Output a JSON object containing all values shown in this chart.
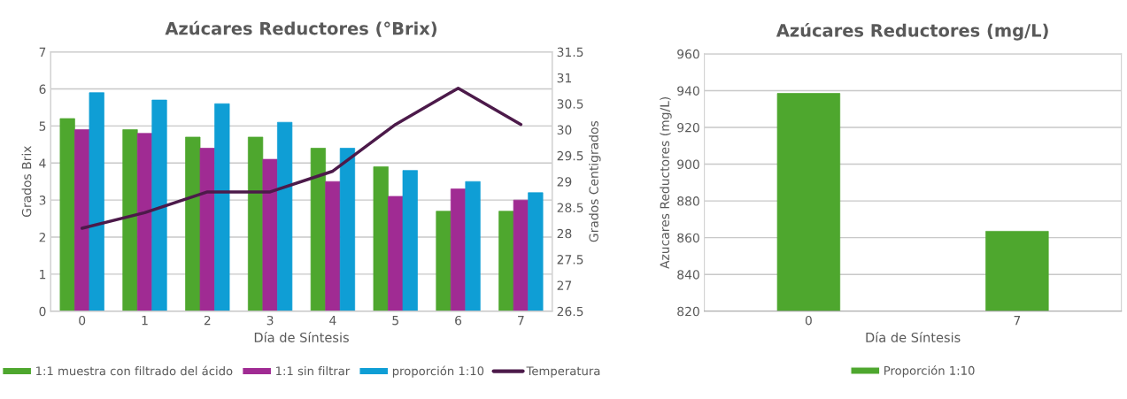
{
  "chart_data": [
    {
      "type": "bar",
      "title": "Azúcares Reductores (°Brix)",
      "xlabel": "Día de Síntesis",
      "ylabel": "Grados Brix",
      "y2label": "Grados Centigrados",
      "categories": [
        "0",
        "1",
        "2",
        "3",
        "4",
        "5",
        "6",
        "7"
      ],
      "series": [
        {
          "name": "1:1 muestra con filtrado del ácido",
          "color": "#4ea72e",
          "values": [
            5.2,
            4.9,
            4.7,
            4.7,
            4.4,
            3.9,
            2.7,
            2.7
          ]
        },
        {
          "name": "1:1 sin filtrar",
          "color": "#a02b93",
          "values": [
            4.9,
            4.8,
            4.4,
            4.1,
            3.5,
            3.1,
            3.3,
            3.0
          ]
        },
        {
          "name": "proporción 1:10",
          "color": "#0f9ed5",
          "values": [
            5.9,
            5.7,
            5.6,
            5.1,
            4.4,
            3.8,
            3.5,
            3.2
          ]
        },
        {
          "name": "Temperatura",
          "type": "line",
          "axis": "y2",
          "color": "#4c1a4a",
          "values": [
            28.1,
            28.4,
            28.8,
            28.8,
            29.2,
            30.1,
            30.8,
            30.1
          ]
        }
      ],
      "ylim": [
        0,
        7
      ],
      "yticks": [
        0,
        1,
        2,
        3,
        4,
        5,
        6,
        7
      ],
      "y2lim": [
        26.5,
        31.5
      ],
      "y2ticks": [
        26.5,
        27,
        27.5,
        28,
        28.5,
        29,
        29.5,
        30,
        30.5,
        31,
        31.5
      ],
      "grid": "y",
      "legend": "bottom"
    },
    {
      "type": "bar",
      "title": "Azúcares Reductores (mg/L)",
      "xlabel": "Día de Síntesis",
      "ylabel": "Azucares Reductores (mg/L)",
      "categories": [
        "0",
        "7"
      ],
      "series": [
        {
          "name": "Proporción 1:10",
          "color": "#4ea72e",
          "values": [
            938.5,
            863.5
          ]
        }
      ],
      "ylim": [
        820,
        960
      ],
      "yticks": [
        820,
        840,
        860,
        880,
        900,
        920,
        940,
        960
      ],
      "grid": "y",
      "legend": "bottom"
    }
  ]
}
